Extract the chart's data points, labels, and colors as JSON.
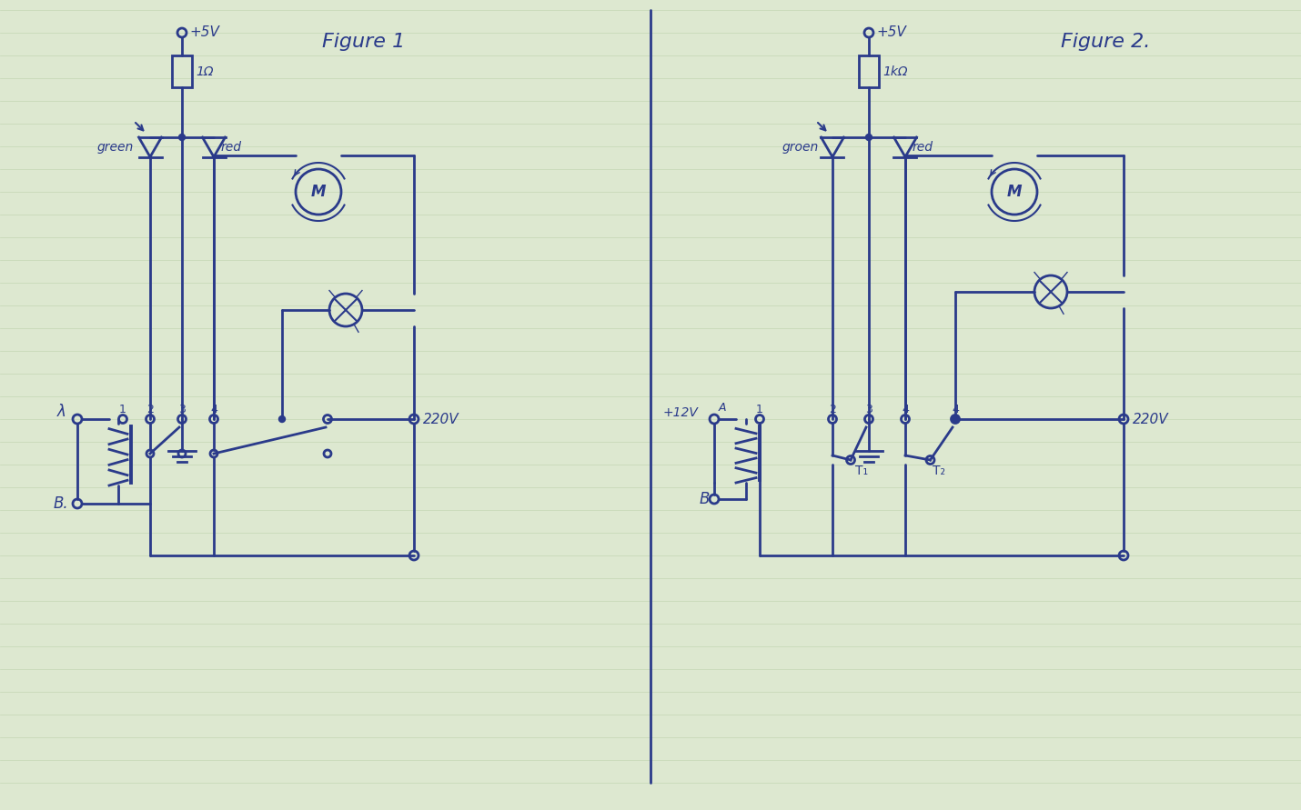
{
  "bg_color": "#dde8d0",
  "line_color": "#2a3a8a",
  "text_color": "#2a3a8a",
  "line_width": 2.0,
  "fig1_title": "Figure 1",
  "fig2_title": "Figure 2.",
  "fig1_label_5v": "+5V",
  "fig1_label_res": "1Ω",
  "fig1_label_green": "green",
  "fig1_label_red": "red",
  "fig1_label_B": "B.",
  "fig1_label_A": "λ",
  "fig1_label_220": "220V",
  "fig2_label_5v": "+5V",
  "fig2_label_res": "1kΩ",
  "fig2_label_groen": "groen",
  "fig2_label_red": "red",
  "fig2_label_B": "B",
  "fig2_label_12v": "+12V",
  "fig2_label_A": "A",
  "fig2_label_220": "220V",
  "fig2_label_T1": "T₁",
  "fig2_label_T2": "T₂"
}
